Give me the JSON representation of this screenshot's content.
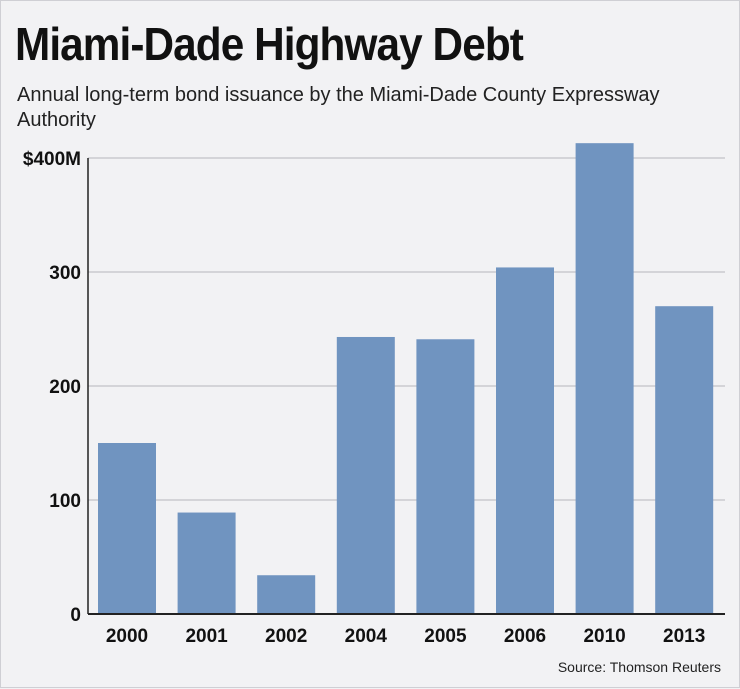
{
  "chart_data": {
    "type": "bar",
    "title": "Miami-Dade Highway Debt",
    "subtitle": "Annual long-term bond issuance by the Miami-Dade County Expressway Authority",
    "source": "Source: Thomson Reuters",
    "categories": [
      "2000",
      "2001",
      "2002",
      "2004",
      "2005",
      "2006",
      "2010",
      "2013"
    ],
    "values": [
      150,
      89,
      34,
      243,
      241,
      304,
      413,
      270
    ],
    "ylim": [
      0,
      400
    ],
    "yticks": [
      0,
      100,
      200,
      300,
      400
    ],
    "ytick_labels": [
      "0",
      "100",
      "200",
      "300",
      "$400M"
    ],
    "grid": true,
    "xlabel": "",
    "ylabel": "",
    "bar_color": "#7094c0",
    "grid_color": "#c9c9cf"
  }
}
